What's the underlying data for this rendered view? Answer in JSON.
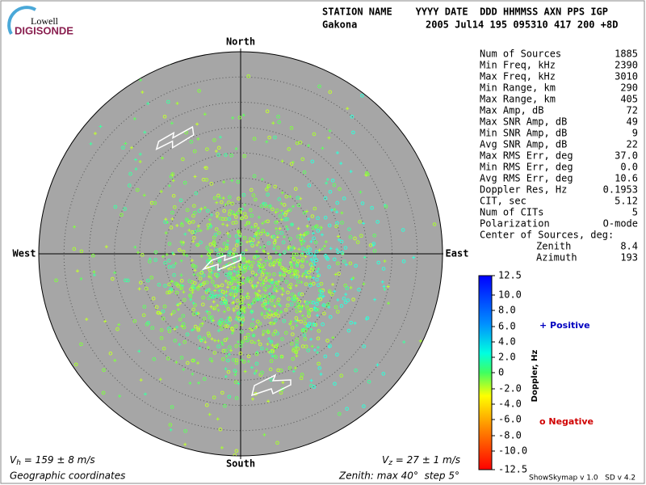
{
  "header": {
    "logo_top": "Lowell",
    "logo_bottom": "DIGISONDE",
    "columns": "STATION NAME    YYYY DATE  DDD HHMMSS AXN PPS IGP",
    "station": "Gakona",
    "record": "2005 Jul14 195 095310 417 200 +8D"
  },
  "compass": {
    "north": "North",
    "south": "South",
    "west": "West",
    "east": "East"
  },
  "stats": [
    [
      "Num of Sources",
      "1885"
    ],
    [
      "Min Freq, kHz",
      "2390"
    ],
    [
      "Max Freq, kHz",
      "3010"
    ],
    [
      "Min Range, km",
      "290"
    ],
    [
      "Max Range, km",
      "405"
    ],
    [
      "Max Amp, dB",
      "72"
    ],
    [
      "Max SNR Amp, dB",
      "49"
    ],
    [
      "Min SNR Amp, dB",
      "9"
    ],
    [
      "Avg SNR Amp, dB",
      "22"
    ],
    [
      "Max RMS Err, deg",
      "37.0"
    ],
    [
      "Min RMS Err, deg",
      "0.0"
    ],
    [
      "Avg RMS Err, deg",
      "10.6"
    ],
    [
      "Doppler Res, Hz",
      "0.1953"
    ],
    [
      "CIT, sec",
      "5.12"
    ],
    [
      "Num of CITs",
      "5"
    ],
    [
      "Polarization",
      "O-mode"
    ]
  ],
  "center": {
    "title": "Center of Sources, deg:",
    "zenith_label": "Zenith",
    "zenith": "8.4",
    "azimuth_label": "Azimuth",
    "azimuth": "193"
  },
  "colorbar": {
    "label": "Doppler, Hz",
    "ticks": [
      "12.5",
      "10.0",
      "8.0",
      "6.0",
      "4.0",
      "2.0",
      "0",
      "-2.0",
      "-4.0",
      "-6.0",
      "-8.0",
      "-10.0",
      "-12.5"
    ]
  },
  "legend": {
    "positive": "+ Positive",
    "negative": "o Negative"
  },
  "footer": {
    "vh_symbol": "V",
    "vh_sub": "h",
    "vh_text": " = 159 ± 8 m/s",
    "vz_symbol": "V",
    "vz_sub": "z",
    "vz_text": " = 27 ± 1 m/s",
    "coords": "Geographic coordinates",
    "zenith": "Zenith: max 40°  step 5°",
    "version": "ShowSkymap v 1.0   SD v 4.2"
  }
}
